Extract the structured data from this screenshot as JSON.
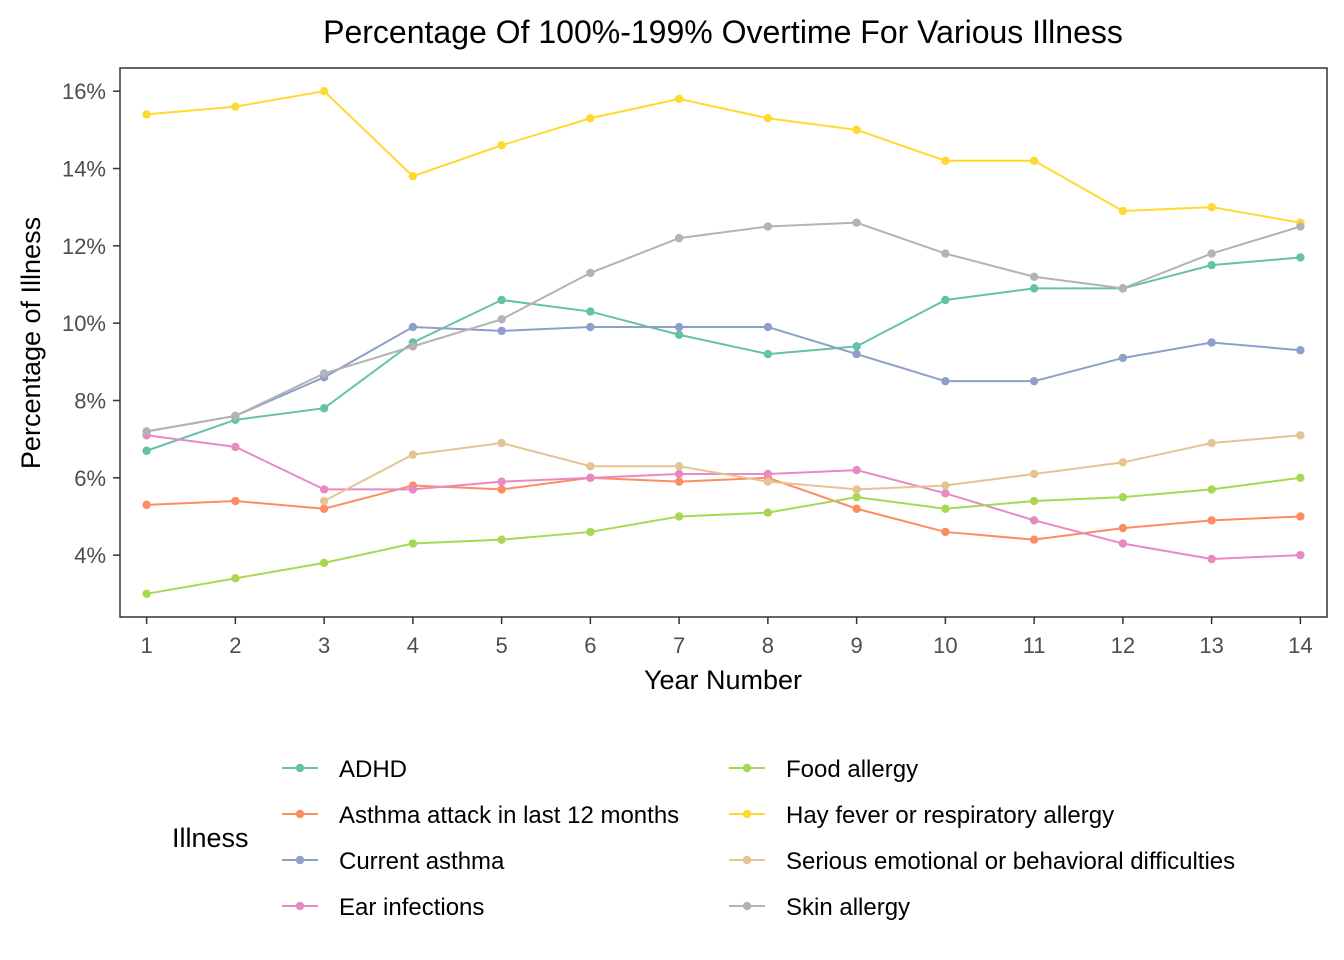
{
  "chart_data": {
    "type": "line",
    "title": "Percentage Of 100%-199% Overtime For Various Illness",
    "xlabel": "Year Number",
    "ylabel": "Percentage of Illness",
    "x": [
      1,
      2,
      3,
      4,
      5,
      6,
      7,
      8,
      9,
      10,
      11,
      12,
      13,
      14
    ],
    "x_ticks": [
      "1",
      "2",
      "3",
      "4",
      "5",
      "6",
      "7",
      "8",
      "9",
      "10",
      "11",
      "12",
      "13",
      "14"
    ],
    "xlim": [
      0.7,
      14.3
    ],
    "y_ticks": [
      4,
      6,
      8,
      10,
      12,
      14,
      16
    ],
    "y_tick_labels": [
      "4%",
      "6%",
      "8%",
      "10%",
      "12%",
      "14%",
      "16%"
    ],
    "ylim": [
      2.4,
      16.6
    ],
    "grid": false,
    "legend": {
      "title": "Illness",
      "placement": "bottom"
    },
    "series": [
      {
        "name": "ADHD",
        "color": "#66c2a5",
        "values": [
          6.7,
          7.5,
          7.8,
          9.5,
          10.6,
          10.3,
          9.7,
          9.2,
          9.4,
          10.6,
          10.9,
          10.9,
          11.5,
          11.7
        ]
      },
      {
        "name": "Asthma attack in last 12 months",
        "color": "#fc8d62",
        "values": [
          5.3,
          5.4,
          5.2,
          5.8,
          5.7,
          6.0,
          5.9,
          6.0,
          5.2,
          4.6,
          4.4,
          4.7,
          4.9,
          5.0
        ]
      },
      {
        "name": "Current asthma",
        "color": "#8da0cb",
        "values": [
          7.2,
          7.6,
          8.6,
          9.9,
          9.8,
          9.9,
          9.9,
          9.9,
          9.2,
          8.5,
          8.5,
          9.1,
          9.5,
          9.3
        ]
      },
      {
        "name": "Ear infections",
        "color": "#e78ac3",
        "values": [
          7.1,
          6.8,
          5.7,
          5.7,
          5.9,
          6.0,
          6.1,
          6.1,
          6.2,
          5.6,
          4.9,
          4.3,
          3.9,
          4.0
        ]
      },
      {
        "name": "Food allergy",
        "color": "#a6d854",
        "values": [
          3.0,
          3.4,
          3.8,
          4.3,
          4.4,
          4.6,
          5.0,
          5.1,
          5.5,
          5.2,
          5.4,
          5.5,
          5.7,
          6.0
        ]
      },
      {
        "name": "Hay fever or respiratory allergy",
        "color": "#ffd92f",
        "values": [
          15.4,
          15.6,
          16.0,
          13.8,
          14.6,
          15.3,
          15.8,
          15.3,
          15.0,
          14.2,
          14.2,
          12.9,
          13.0,
          12.6
        ]
      },
      {
        "name": "Serious emotional or behavioral difficulties",
        "color": "#e5c494",
        "values": [
          null,
          null,
          5.4,
          6.6,
          6.9,
          6.3,
          6.3,
          5.9,
          5.7,
          5.8,
          6.1,
          6.4,
          6.9,
          7.1
        ]
      },
      {
        "name": "Skin allergy",
        "color": "#b3b3b3",
        "values": [
          7.2,
          7.6,
          8.7,
          9.4,
          10.1,
          11.3,
          12.2,
          12.5,
          12.6,
          11.8,
          11.2,
          10.9,
          11.8,
          12.5
        ]
      }
    ]
  }
}
